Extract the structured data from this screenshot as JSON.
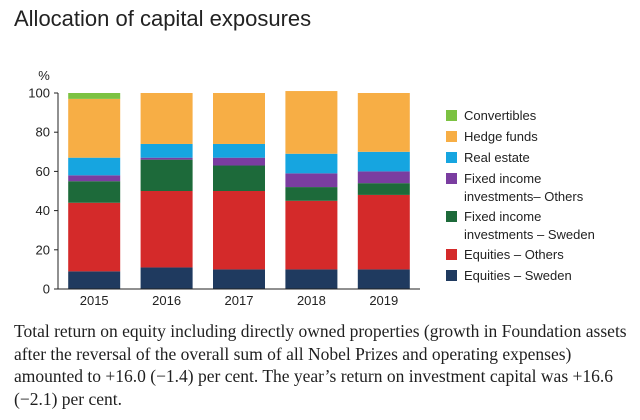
{
  "title": "Allocation of capital exposures",
  "caption": "Total return on equity including directly owned properties (growth in Foundation assets after the reversal of the overall sum of all Nobel Prizes and operating expenses) amounted to +16.0 (−1.4) per cent. The year’s return on investment capital was +16.6 (−2.1) per cent.",
  "chart_data": {
    "type": "bar",
    "stacked": true,
    "categories": [
      "2015",
      "2016",
      "2017",
      "2018",
      "2019"
    ],
    "ylabel": "%",
    "ylim": [
      0,
      100
    ],
    "yticks": [
      0,
      20,
      40,
      60,
      80,
      100
    ],
    "legend_position": "right",
    "series": [
      {
        "name": "Equities – Sweden",
        "color": "#1f3a5f",
        "values": [
          9,
          11,
          10,
          10,
          10
        ]
      },
      {
        "name": "Equities – Others",
        "color": "#d42a2a",
        "values": [
          35,
          39,
          40,
          35,
          38
        ]
      },
      {
        "name": "Fixed income investments – Sweden",
        "color": "#1d6a3a",
        "values": [
          11,
          16,
          13,
          7,
          6
        ]
      },
      {
        "name": "Fixed income investments– Others",
        "color": "#7a3da0",
        "values": [
          3,
          1,
          4,
          7,
          6
        ]
      },
      {
        "name": "Real estate",
        "color": "#16a5e0",
        "values": [
          9,
          7,
          7,
          10,
          10
        ]
      },
      {
        "name": "Hedge funds",
        "color": "#f7ae45",
        "values": [
          30,
          26,
          26,
          32,
          30
        ]
      },
      {
        "name": "Convertibles",
        "color": "#7cc242",
        "values": [
          3,
          0,
          0,
          0,
          0
        ]
      }
    ]
  }
}
